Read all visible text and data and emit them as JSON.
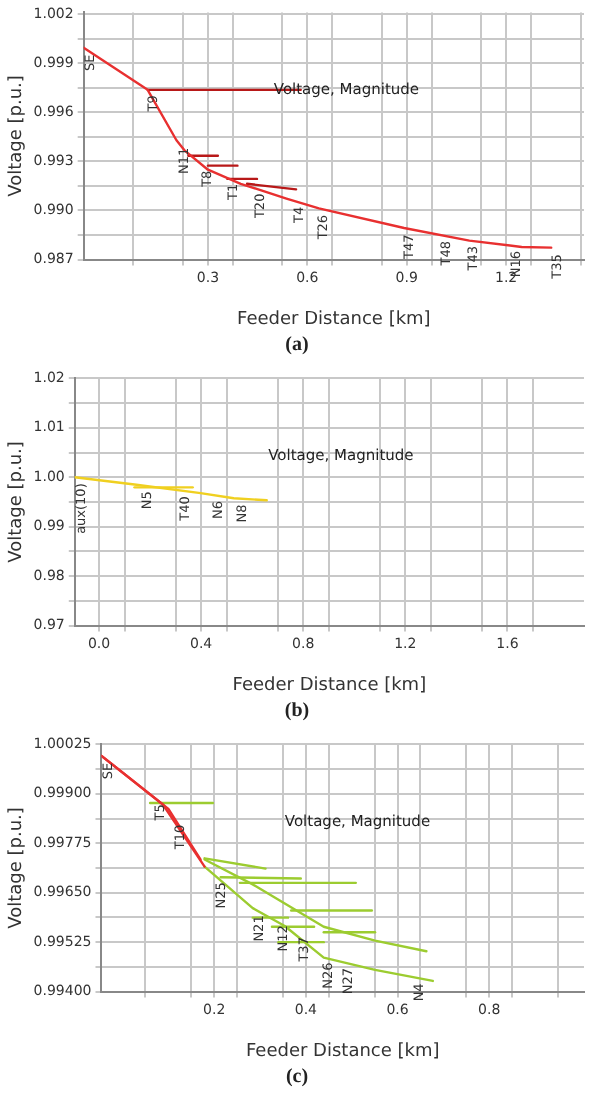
{
  "chart_data": [
    {
      "type": "line",
      "xlabel": "Feeder Distance [km]",
      "ylabel": "Voltage [p.u.]",
      "xlim": [
        -0.075,
        1.435
      ],
      "ylim": [
        0.987,
        1.0021
      ],
      "grid": true,
      "marker": "none",
      "line_style": "solid",
      "xticks": [
        {
          "value": 0.075,
          "label": null
        },
        {
          "value": 0.225,
          "label": null
        },
        0.3,
        {
          "value": 0.375,
          "label": null
        },
        {
          "value": 0.525,
          "label": null
        },
        0.6,
        {
          "value": 0.675,
          "label": null
        },
        {
          "value": 0.825,
          "label": null
        },
        0.9,
        {
          "value": 0.975,
          "label": null
        },
        {
          "value": 1.125,
          "label": null
        },
        1.2,
        {
          "value": 1.275,
          "label": null
        },
        {
          "value": 1.425,
          "label": null
        }
      ],
      "yticks": [
        0.987,
        {
          "value": 0.9885,
          "label": null
        },
        {
          "value": 0.99,
          "label": "0.990"
        },
        {
          "value": 0.9915,
          "label": null
        },
        0.993,
        {
          "value": 0.9945,
          "label": null
        },
        0.996,
        {
          "value": 0.9975,
          "label": null
        },
        0.999,
        {
          "value": 1.0005,
          "label": null
        },
        1.002
      ],
      "series": [
        {
          "color": "#e83030",
          "x": [
            -0.075,
            0.118,
            0.205,
            0.231,
            0.3,
            0.399,
            0.537,
            0.635,
            0.892,
            1.089,
            1.247,
            1.336
          ],
          "values": [
            0.99994,
            0.99737,
            0.99429,
            0.99364,
            0.99249,
            0.99163,
            0.99073,
            0.99013,
            0.98893,
            0.98816,
            0.98777,
            0.98773
          ]
        },
        {
          "color": "#b81818",
          "x": [
            0.118,
            0.58
          ],
          "values": [
            0.99737,
            0.99737
          ]
        },
        {
          "color": "#b81818",
          "x": [
            0.241,
            0.33
          ],
          "values": [
            0.99334,
            0.99334
          ]
        },
        {
          "color": "#b81818",
          "x": [
            0.3,
            0.389
          ],
          "values": [
            0.99274,
            0.99274
          ]
        },
        {
          "color": "#b81818",
          "x": [
            0.359,
            0.448
          ],
          "values": [
            0.99193,
            0.99193
          ]
        },
        {
          "color": "#b81818",
          "x": [
            0.418,
            0.566
          ],
          "values": [
            0.99163,
            0.99129
          ]
        }
      ],
      "annotations": [
        "Voltage, Magnitude",
        {
          "text": "SE",
          "x": -0.071,
          "y": 0.9999
        },
        {
          "text": "T9",
          "x": 0.118,
          "y": 0.9974
        },
        {
          "text": "N11",
          "x": 0.211,
          "y": 0.9942
        },
        {
          "text": "T8",
          "x": 0.28,
          "y": 0.9928
        },
        {
          "text": "T1",
          "x": 0.359,
          "y": 0.992
        },
        {
          "text": "T20",
          "x": 0.442,
          "y": 0.9914
        },
        {
          "text": "T4",
          "x": 0.56,
          "y": 0.9906
        },
        {
          "text": "T26",
          "x": 0.632,
          "y": 0.9901
        },
        {
          "text": "T47",
          "x": 0.892,
          "y": 0.9889
        },
        {
          "text": "T48",
          "x": 1.001,
          "y": 0.9885
        },
        {
          "text": "T43",
          "x": 1.085,
          "y": 0.9882
        },
        {
          "text": "N16",
          "x": 1.215,
          "y": 0.9879
        },
        {
          "text": "T35",
          "x": 1.336,
          "y": 0.9877
        },
        "(a)"
      ]
    },
    {
      "type": "line",
      "xlabel": "Feeder Distance [km]",
      "ylabel": "Voltage [p.u.]",
      "xlim": [
        -0.095,
        1.9
      ],
      "ylim": [
        0.97,
        1.02
      ],
      "grid": true,
      "marker": "none",
      "line_style": "solid",
      "xticks": [
        {
          "value": 0,
          "label": "0.0"
        },
        {
          "value": 0.1,
          "label": null
        },
        {
          "value": 0.3,
          "label": null
        },
        0.4,
        {
          "value": 0.5,
          "label": null
        },
        {
          "value": 0.7,
          "label": null
        },
        0.8,
        {
          "value": 0.9,
          "label": null
        },
        {
          "value": 1.1,
          "label": null
        },
        1.2,
        {
          "value": 1.3,
          "label": null
        },
        {
          "value": 1.5,
          "label": null
        },
        1.6,
        {
          "value": 1.7,
          "label": null
        }
      ],
      "yticks": [
        0.97,
        {
          "value": 0.975,
          "label": null
        },
        0.98,
        {
          "value": 0.985,
          "label": null
        },
        0.99,
        {
          "value": 0.995,
          "label": null
        },
        {
          "value": 1,
          "label": "1.00"
        },
        {
          "value": 1.005,
          "label": null
        },
        1.01,
        {
          "value": 1.015,
          "label": null
        },
        1.02
      ],
      "series": [
        {
          "color": "#f0d020",
          "x": [
            -0.095,
            0.139,
            0.398,
            0.528,
            0.657
          ],
          "values": [
            1.0,
            0.99854,
            0.99679,
            0.99577,
            0.99534
          ]
        },
        {
          "color": "#f0d020",
          "x": [
            0.139,
            0.367
          ],
          "values": [
            0.99796,
            0.99796
          ]
        }
      ],
      "annotations": [
        "Voltage, Magnitude",
        {
          "text": "aux(10)",
          "x": -0.09,
          "y": 1.0
        },
        {
          "text": "N5",
          "x": 0.165,
          "y": 0.9984
        },
        {
          "text": "T40",
          "x": 0.315,
          "y": 0.9974
        },
        {
          "text": "N6",
          "x": 0.445,
          "y": 0.9964
        },
        {
          "text": "N8",
          "x": 0.54,
          "y": 0.9957
        },
        "(b)"
      ]
    },
    {
      "type": "line",
      "xlabel": "Feeder Distance [km]",
      "ylabel": "Voltage [p.u.]",
      "xlim": [
        -0.046,
        1.007
      ],
      "ylim": [
        0.994,
        1.00025
      ],
      "grid": true,
      "marker": "none",
      "line_style": "solid",
      "xticks": [
        {
          "value": 0.05,
          "label": null
        },
        {
          "value": 0.15,
          "label": null
        },
        0.2,
        {
          "value": 0.25,
          "label": null
        },
        {
          "value": 0.35,
          "label": null
        },
        0.4,
        {
          "value": 0.45,
          "label": null
        },
        {
          "value": 0.55,
          "label": null
        },
        0.6,
        {
          "value": 0.65,
          "label": null
        },
        {
          "value": 0.75,
          "label": null
        },
        0.8,
        {
          "value": 0.85,
          "label": null
        },
        {
          "value": 0.95,
          "label": null
        }
      ],
      "yticks": [
        {
          "value": 0.994,
          "label": "0.99400"
        },
        {
          "value": 0.994625,
          "label": null
        },
        {
          "value": 0.99525,
          "label": "0.99525"
        },
        {
          "value": 0.995875,
          "label": null
        },
        {
          "value": 0.9965,
          "label": "0.99650"
        },
        {
          "value": 0.997125,
          "label": null
        },
        {
          "value": 0.99775,
          "label": "0.99775"
        },
        {
          "value": 0.998375,
          "label": null
        },
        {
          "value": 0.999,
          "label": "0.99900"
        },
        {
          "value": 0.999625,
          "label": null
        },
        {
          "value": 1.00025,
          "label": "1.00025"
        }
      ],
      "series": [
        {
          "color": "#e83030",
          "x": [
            -0.046,
            0.088,
            0.179
          ],
          "values": [
            0.99996,
            0.99873,
            0.99716
          ]
        },
        {
          "color": "#e83030",
          "x": [
            -0.046,
            0.1,
            0.17
          ],
          "values": [
            0.99996,
            0.99862,
            0.99734
          ]
        },
        {
          "color": "#9ccc30",
          "x": [
            0.06,
            0.197
          ],
          "values": [
            0.99877,
            0.99877
          ]
        },
        {
          "color": "#9ccc30",
          "x": [
            0.179,
            0.284,
            0.354,
            0.439,
            0.551,
            0.677
          ],
          "values": [
            0.99716,
            0.99611,
            0.99566,
            0.99486,
            0.99455,
            0.99427
          ]
        },
        {
          "color": "#9ccc30",
          "x": [
            0.179,
            0.284,
            0.439,
            0.551,
            0.663
          ],
          "values": [
            0.99734,
            0.99671,
            0.99564,
            0.99529,
            0.99502
          ]
        },
        {
          "color": "#9ccc30",
          "x": [
            0.179,
            0.312
          ],
          "values": [
            0.99737,
            0.99711
          ]
        },
        {
          "color": "#9ccc30",
          "x": [
            0.214,
            0.389
          ],
          "values": [
            0.99689,
            0.99686
          ]
        },
        {
          "color": "#9ccc30",
          "x": [
            0.256,
            0.509
          ],
          "values": [
            0.99675,
            0.99675
          ]
        },
        {
          "color": "#9ccc30",
          "x": [
            0.368,
            0.544
          ],
          "values": [
            0.99605,
            0.99605
          ]
        },
        {
          "color": "#9ccc30",
          "x": [
            0.284,
            0.361
          ],
          "values": [
            0.99587,
            0.99587
          ]
        },
        {
          "color": "#9ccc30",
          "x": [
            0.326,
            0.418
          ],
          "values": [
            0.99564,
            0.99564
          ]
        },
        {
          "color": "#9ccc30",
          "x": [
            0.34,
            0.439
          ],
          "values": [
            0.99525,
            0.99525
          ]
        },
        {
          "color": "#9ccc30",
          "x": [
            0.439,
            0.551
          ],
          "values": [
            0.9955,
            0.9955
          ]
        }
      ],
      "annotations": [
        "Voltage, Magnitude",
        {
          "text": "SE",
          "x": -0.044,
          "y": 0.99994
        },
        {
          "text": "T5",
          "x": 0.071,
          "y": 0.99889
        },
        {
          "text": "T10",
          "x": 0.113,
          "y": 0.99837
        },
        {
          "text": "N25",
          "x": 0.203,
          "y": 0.99692
        },
        {
          "text": "N21",
          "x": 0.287,
          "y": 0.99608
        },
        {
          "text": "N12",
          "x": 0.338,
          "y": 0.99583
        },
        {
          "text": "T37",
          "x": 0.385,
          "y": 0.99553
        },
        {
          "text": "N26",
          "x": 0.436,
          "y": 0.99489
        },
        {
          "text": "N27",
          "x": 0.481,
          "y": 0.99475
        },
        {
          "text": "N4",
          "x": 0.635,
          "y": 0.99436
        },
        "(c)"
      ]
    }
  ]
}
